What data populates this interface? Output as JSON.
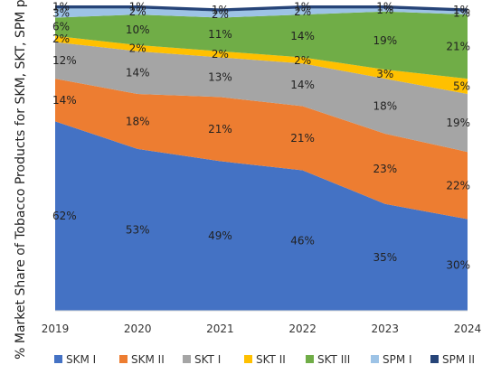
{
  "chart_data": {
    "type": "area",
    "stacked": true,
    "percent": true,
    "title": "",
    "ylabel": "% Market Share of Tobacco Products for SKM, SKT, SPM per Tier",
    "xlabel": "",
    "ylim": [
      0,
      100
    ],
    "categories": [
      "2019",
      "2020",
      "2021",
      "2022",
      "2023",
      "2024"
    ],
    "series": [
      {
        "name": "SKM I",
        "color": "#4472C4",
        "values": [
          62,
          53,
          49,
          46,
          35,
          30
        ],
        "labels": [
          "62%",
          "53%",
          "49%",
          "46%",
          "35%",
          "30%"
        ]
      },
      {
        "name": "SKM II",
        "color": "#ED7D31",
        "values": [
          14,
          18,
          21,
          21,
          23,
          22
        ],
        "labels": [
          "14%",
          "18%",
          "21%",
          "21%",
          "23%",
          "22%"
        ]
      },
      {
        "name": "SKT I",
        "color": "#A5A5A5",
        "values": [
          12,
          14,
          13,
          14,
          18,
          19
        ],
        "labels": [
          "12%",
          "14%",
          "13%",
          "14%",
          "18%",
          "19%"
        ]
      },
      {
        "name": "SKT II",
        "color": "#FFC000",
        "values": [
          2,
          2,
          2,
          2,
          3,
          5
        ],
        "labels": [
          "2%",
          "2%",
          "2%",
          "2%",
          "3%",
          "5%"
        ]
      },
      {
        "name": "SKT III",
        "color": "#70AD47",
        "values": [
          6,
          10,
          11,
          14,
          19,
          21
        ],
        "labels": [
          "6%",
          "10%",
          "11%",
          "14%",
          "19%",
          "21%"
        ]
      },
      {
        "name": "SPM I",
        "color": "#9DC3E6",
        "values": [
          3,
          2,
          2,
          2,
          1,
          1
        ],
        "labels": [
          "3%",
          "2%",
          "2%",
          "2%",
          "1%",
          "1%"
        ]
      },
      {
        "name": "SPM II",
        "color": "#264478",
        "values": [
          1,
          1,
          1,
          1,
          1,
          1
        ],
        "labels": [
          "1%",
          "1%",
          "1%",
          "1%",
          "1%",
          "1%"
        ]
      }
    ],
    "legend_position": "bottom"
  }
}
